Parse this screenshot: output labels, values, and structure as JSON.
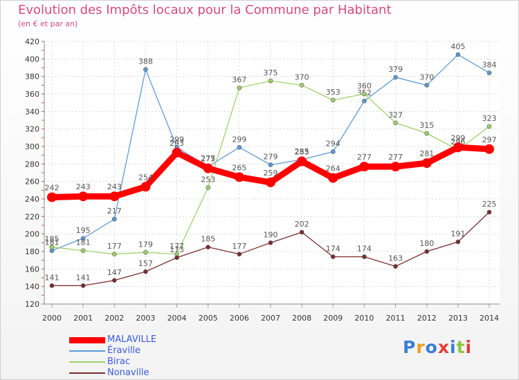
{
  "title": "Evolution des Impôts locaux pour la Commune par Habitant",
  "subtitle": "(en € et par an)",
  "logo": {
    "text": "Proxiti",
    "colors": [
      "#3b7dd8",
      "#f29c1f",
      "#3b7dd8",
      "#e83a3a",
      "#3b7dd8",
      "#8cc63f",
      "#e83a3a"
    ]
  },
  "chart_data": {
    "type": "line",
    "x": [
      2000,
      2001,
      2002,
      2003,
      2004,
      2005,
      2006,
      2007,
      2008,
      2009,
      2010,
      2011,
      2012,
      2013,
      2014
    ],
    "ylim": [
      120,
      420
    ],
    "yticks": [
      120,
      140,
      160,
      180,
      200,
      220,
      240,
      260,
      280,
      300,
      320,
      340,
      360,
      380,
      400,
      420
    ],
    "grid": true,
    "legend_position": "bottom-left",
    "series": [
      {
        "name": "MALAVILLE",
        "color": "#ff0000",
        "values": [
          242,
          243,
          243,
          254,
          293,
          275,
          265,
          259,
          283,
          264,
          277,
          277,
          281,
          299,
          297
        ]
      },
      {
        "name": "Éraville",
        "color": "#5b9bd5",
        "values": [
          181,
          195,
          217,
          388,
          299,
          277,
          299,
          279,
          285,
          294,
          352,
          379,
          370,
          405,
          384
        ]
      },
      {
        "name": "Birac",
        "color": "#9fd16a",
        "values": [
          185,
          181,
          177,
          179,
          177,
          253,
          367,
          375,
          370,
          353,
          360,
          327,
          315,
          296,
          323
        ]
      },
      {
        "name": "Nonaville",
        "color": "#7a2c2c",
        "values": [
          141,
          141,
          147,
          157,
          173,
          185,
          177,
          190,
          202,
          174,
          174,
          163,
          180,
          191,
          225
        ]
      }
    ]
  }
}
